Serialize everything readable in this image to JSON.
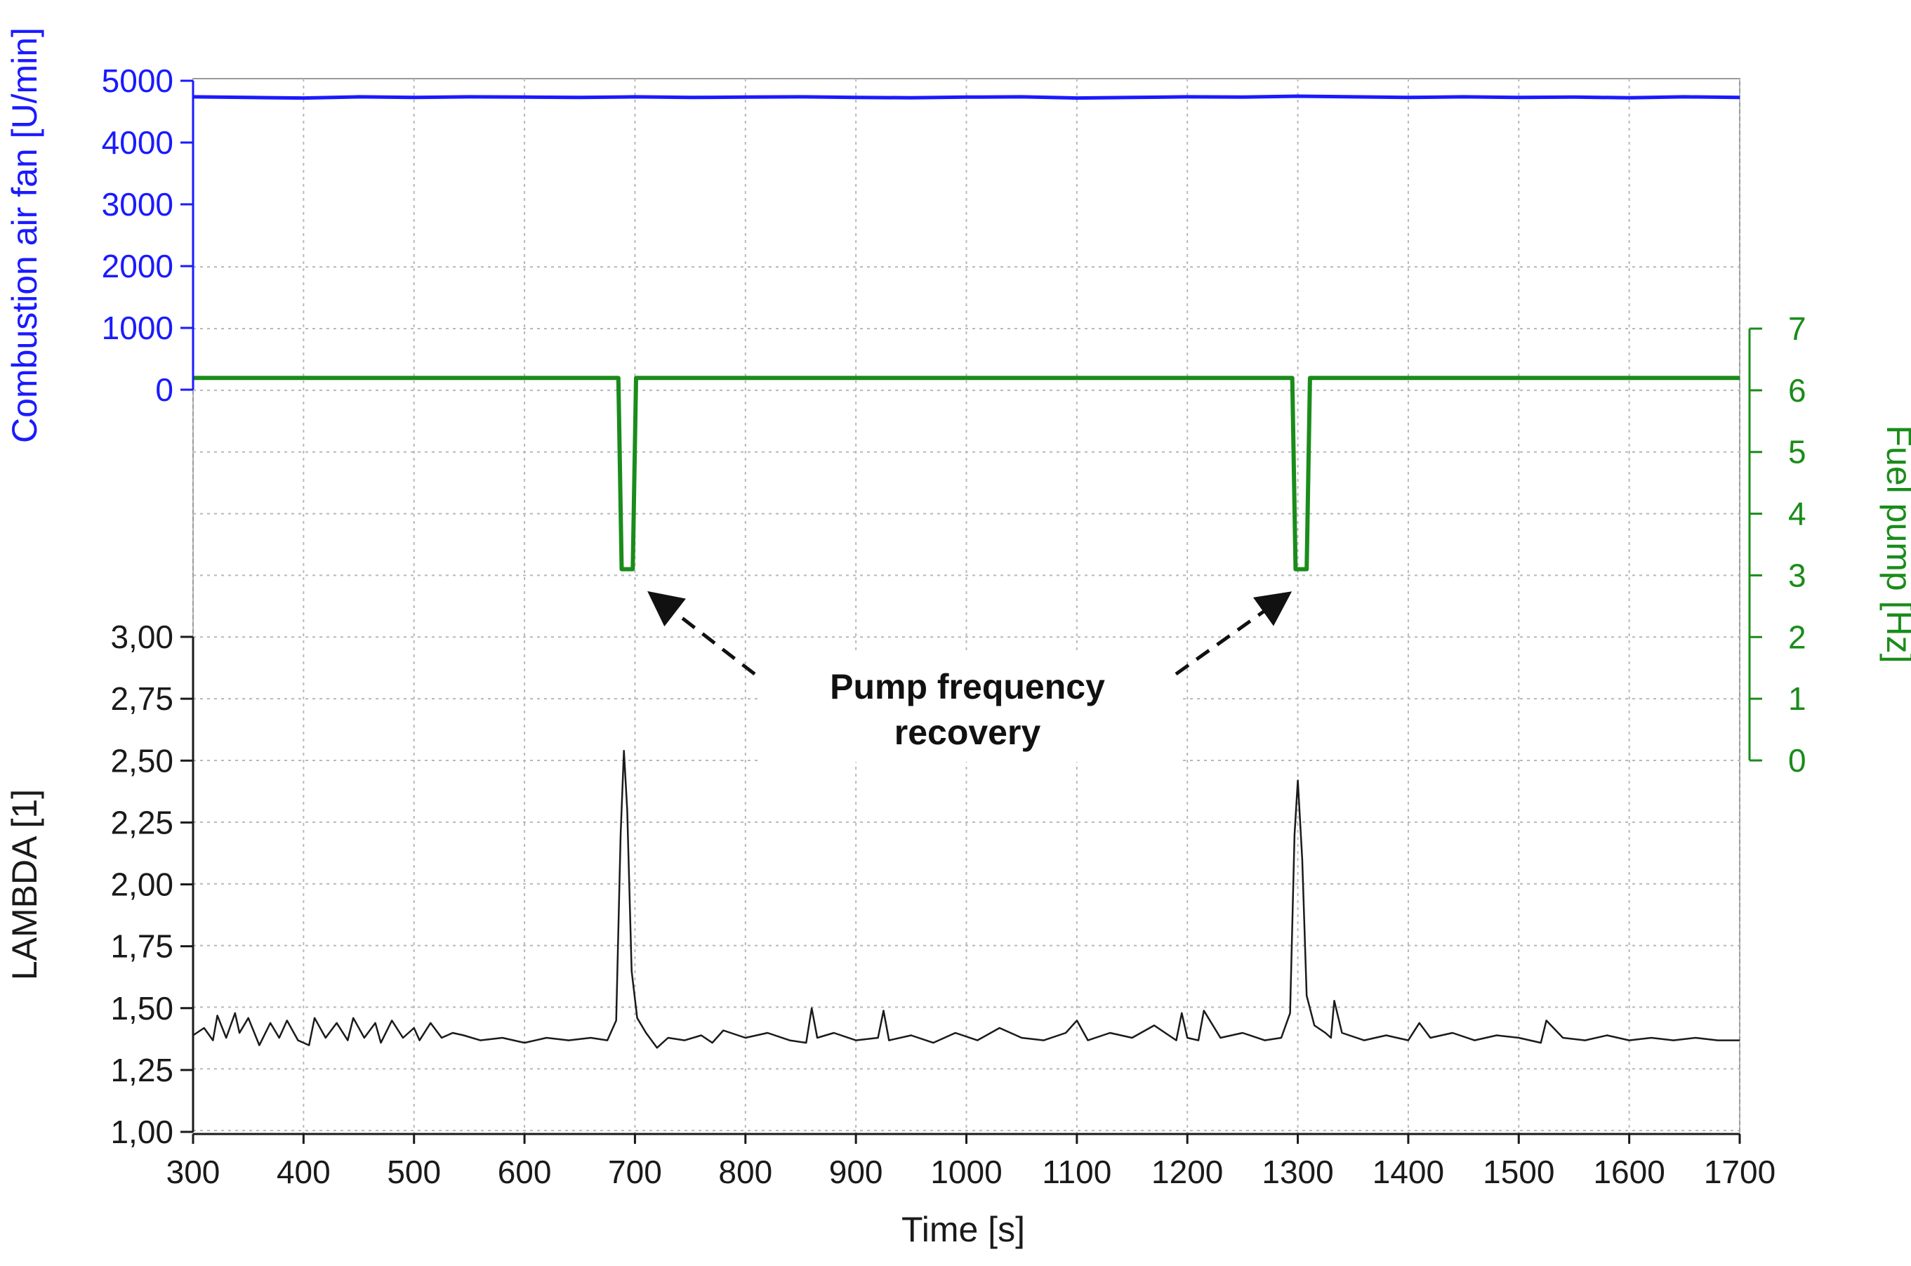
{
  "chart_data": {
    "type": "line",
    "xlabel": "Time [s]",
    "xlim": [
      300,
      1700
    ],
    "x_ticks": [
      "300",
      "400",
      "500",
      "600",
      "700",
      "800",
      "900",
      "1000",
      "1100",
      "1200",
      "1300",
      "1400",
      "1500",
      "1600",
      "1700"
    ],
    "axes": {
      "fan": {
        "label": "Combustion air fan [U/min]",
        "ylim": [
          0,
          5000
        ],
        "ticks": [
          "0",
          "1000",
          "2000",
          "3000",
          "4000",
          "5000"
        ],
        "color": "#1a1aff"
      },
      "pump": {
        "label": "Fuel pump [Hz]",
        "ylim": [
          0,
          7
        ],
        "ticks": [
          "0",
          "1",
          "2",
          "3",
          "4",
          "5",
          "6",
          "7"
        ],
        "color": "#1a8c1a"
      },
      "lambda": {
        "label": "LAMBDA [1]",
        "ylim": [
          1.0,
          3.0
        ],
        "ticks": [
          "1,00",
          "1,25",
          "1,50",
          "1,75",
          "2,00",
          "2,25",
          "2,50",
          "2,75",
          "3,00"
        ],
        "color": "#1a1a1a"
      }
    },
    "series": [
      {
        "axis": "fan",
        "color": "#1a1aff",
        "x": [
          300,
          350,
          400,
          450,
          500,
          550,
          600,
          650,
          700,
          750,
          800,
          850,
          900,
          950,
          1000,
          1050,
          1100,
          1150,
          1200,
          1250,
          1300,
          1350,
          1400,
          1450,
          1500,
          1550,
          1600,
          1650,
          1700
        ],
        "y": [
          4740,
          4730,
          4720,
          4740,
          4730,
          4740,
          4735,
          4730,
          4740,
          4730,
          4735,
          4740,
          4730,
          4725,
          4735,
          4740,
          4720,
          4730,
          4740,
          4735,
          4750,
          4740,
          4730,
          4740,
          4730,
          4735,
          4725,
          4740,
          4730
        ]
      },
      {
        "axis": "pump",
        "color": "#1a8c1a",
        "x": [
          300,
          685,
          688,
          698,
          701,
          1295,
          1298,
          1308,
          1311,
          1700
        ],
        "y": [
          6.2,
          6.2,
          3.1,
          3.1,
          6.2,
          6.2,
          3.1,
          3.1,
          6.2,
          6.2
        ]
      },
      {
        "axis": "lambda",
        "color": "#1a1a1a",
        "x": [
          300,
          310,
          318,
          322,
          330,
          338,
          342,
          350,
          360,
          370,
          378,
          385,
          395,
          405,
          410,
          420,
          430,
          440,
          445,
          455,
          465,
          470,
          480,
          490,
          500,
          505,
          515,
          525,
          535,
          545,
          560,
          580,
          600,
          620,
          640,
          660,
          675,
          683,
          687,
          690,
          693,
          697,
          702,
          710,
          720,
          730,
          745,
          760,
          770,
          780,
          800,
          820,
          840,
          855,
          860,
          865,
          880,
          900,
          920,
          925,
          930,
          950,
          970,
          990,
          1010,
          1030,
          1050,
          1070,
          1090,
          1100,
          1110,
          1130,
          1150,
          1170,
          1190,
          1195,
          1200,
          1210,
          1215,
          1230,
          1250,
          1270,
          1285,
          1293,
          1297,
          1300,
          1304,
          1308,
          1315,
          1325,
          1330,
          1333,
          1340,
          1360,
          1380,
          1400,
          1410,
          1420,
          1440,
          1460,
          1480,
          1500,
          1520,
          1525,
          1540,
          1560,
          1580,
          1600,
          1620,
          1640,
          1660,
          1680,
          1700
        ],
        "y": [
          1.39,
          1.42,
          1.37,
          1.47,
          1.38,
          1.48,
          1.4,
          1.46,
          1.35,
          1.44,
          1.38,
          1.45,
          1.37,
          1.35,
          1.46,
          1.38,
          1.44,
          1.37,
          1.46,
          1.38,
          1.44,
          1.36,
          1.45,
          1.38,
          1.42,
          1.37,
          1.44,
          1.38,
          1.4,
          1.39,
          1.37,
          1.38,
          1.36,
          1.38,
          1.37,
          1.38,
          1.37,
          1.45,
          2.2,
          2.54,
          2.3,
          1.65,
          1.46,
          1.4,
          1.34,
          1.38,
          1.37,
          1.39,
          1.36,
          1.41,
          1.38,
          1.4,
          1.37,
          1.36,
          1.5,
          1.38,
          1.4,
          1.37,
          1.38,
          1.49,
          1.37,
          1.39,
          1.36,
          1.4,
          1.37,
          1.42,
          1.38,
          1.37,
          1.4,
          1.45,
          1.37,
          1.4,
          1.38,
          1.43,
          1.37,
          1.48,
          1.38,
          1.37,
          1.49,
          1.38,
          1.4,
          1.37,
          1.38,
          1.48,
          2.2,
          2.42,
          2.1,
          1.55,
          1.43,
          1.4,
          1.38,
          1.53,
          1.4,
          1.37,
          1.39,
          1.37,
          1.44,
          1.38,
          1.4,
          1.37,
          1.39,
          1.38,
          1.36,
          1.45,
          1.38,
          1.37,
          1.39,
          1.37,
          1.38,
          1.37,
          1.38,
          1.37,
          1.37
        ]
      }
    ],
    "grid": true,
    "annotation": {
      "line1": "Pump frequency",
      "line2": "recovery",
      "arrow_targets": [
        {
          "x": 700,
          "pump_y": 2.7
        },
        {
          "x": 1298,
          "pump_y": 2.7
        }
      ]
    }
  }
}
